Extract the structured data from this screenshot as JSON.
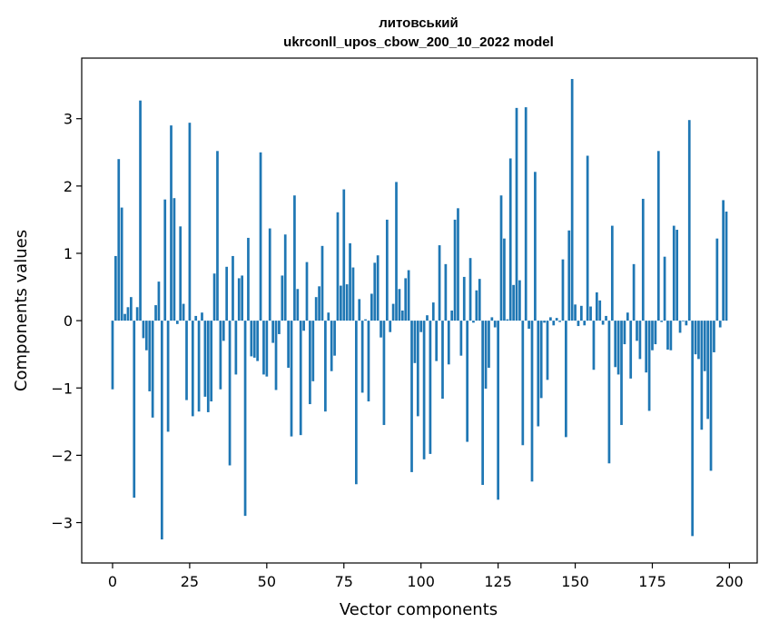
{
  "chart_data": {
    "type": "bar",
    "title_line1": "литовський",
    "title_line2": "ukrconll_upos_cbow_200_10_2022 model",
    "xlabel": "Vector components",
    "ylabel": "Components values",
    "xlim": [
      -10,
      209
    ],
    "ylim": [
      -3.6,
      3.9
    ],
    "xticks": [
      0,
      25,
      50,
      75,
      100,
      125,
      150,
      175,
      200
    ],
    "yticks": [
      -3,
      -2,
      -1,
      0,
      1,
      2,
      3
    ],
    "ytick_labels": [
      "−3",
      "−2",
      "−1",
      "0",
      "1",
      "2",
      "3"
    ],
    "bar_color": "#1f77b4",
    "grid": false,
    "values": [
      -1.02,
      0.96,
      2.4,
      1.68,
      0.1,
      0.2,
      0.35,
      -2.63,
      0.2,
      3.27,
      -0.26,
      -0.44,
      -1.05,
      -1.44,
      0.23,
      0.58,
      -3.25,
      1.8,
      -1.65,
      2.9,
      1.82,
      -0.05,
      1.4,
      0.25,
      -1.18,
      2.94,
      -1.42,
      0.07,
      -1.35,
      0.12,
      -1.13,
      -1.36,
      -1.2,
      0.7,
      2.52,
      -1.02,
      -0.3,
      0.8,
      -2.15,
      0.96,
      -0.8,
      0.63,
      0.67,
      -2.9,
      1.23,
      -0.53,
      -0.55,
      -0.6,
      2.5,
      -0.8,
      -0.83,
      1.37,
      -0.33,
      -1.03,
      -0.2,
      0.67,
      1.28,
      -0.7,
      -1.72,
      1.86,
      0.47,
      -1.7,
      -0.15,
      0.87,
      -1.24,
      -0.9,
      0.35,
      0.51,
      1.11,
      -1.35,
      0.12,
      -0.75,
      -0.52,
      1.61,
      0.52,
      1.95,
      0.54,
      1.15,
      0.79,
      -2.43,
      0.32,
      -1.07,
      0.02,
      -1.2,
      0.4,
      0.86,
      0.97,
      -0.25,
      -1.55,
      1.5,
      -0.17,
      0.25,
      2.06,
      0.47,
      0.15,
      0.63,
      0.75,
      -2.25,
      -0.63,
      -1.42,
      -0.17,
      -2.06,
      0.08,
      -1.98,
      0.27,
      -0.6,
      1.12,
      -1.16,
      0.84,
      -0.65,
      0.15,
      1.5,
      1.67,
      -0.52,
      0.65,
      -1.8,
      0.93,
      -0.03,
      0.45,
      0.62,
      -2.44,
      -1.01,
      -0.7,
      0.05,
      -0.1,
      -2.66,
      1.86,
      1.22,
      0.02,
      2.41,
      0.53,
      3.16,
      0.6,
      -1.85,
      3.17,
      -0.12,
      -2.39,
      2.21,
      -1.57,
      -1.15,
      -0.03,
      -0.88,
      0.05,
      -0.07,
      0.04,
      -0.02,
      0.91,
      -1.73,
      1.34,
      3.59,
      0.24,
      -0.08,
      0.22,
      -0.07,
      2.45,
      0.21,
      -0.73,
      0.42,
      0.3,
      -0.06,
      0.07,
      -2.12,
      1.41,
      -0.69,
      -0.8,
      -1.55,
      -0.35,
      0.12,
      -0.86,
      0.84,
      -0.3,
      -0.57,
      1.81,
      -0.77,
      -1.34,
      -0.44,
      -0.35,
      2.52,
      -0.02,
      0.95,
      -0.43,
      -0.44,
      1.41,
      1.35,
      -0.18,
      -0.01,
      -0.07,
      2.98,
      -3.2,
      -0.5,
      -0.57,
      -1.62,
      -0.75,
      -1.46,
      -2.23,
      -0.47,
      1.22,
      -0.1,
      1.79,
      1.62
    ]
  }
}
